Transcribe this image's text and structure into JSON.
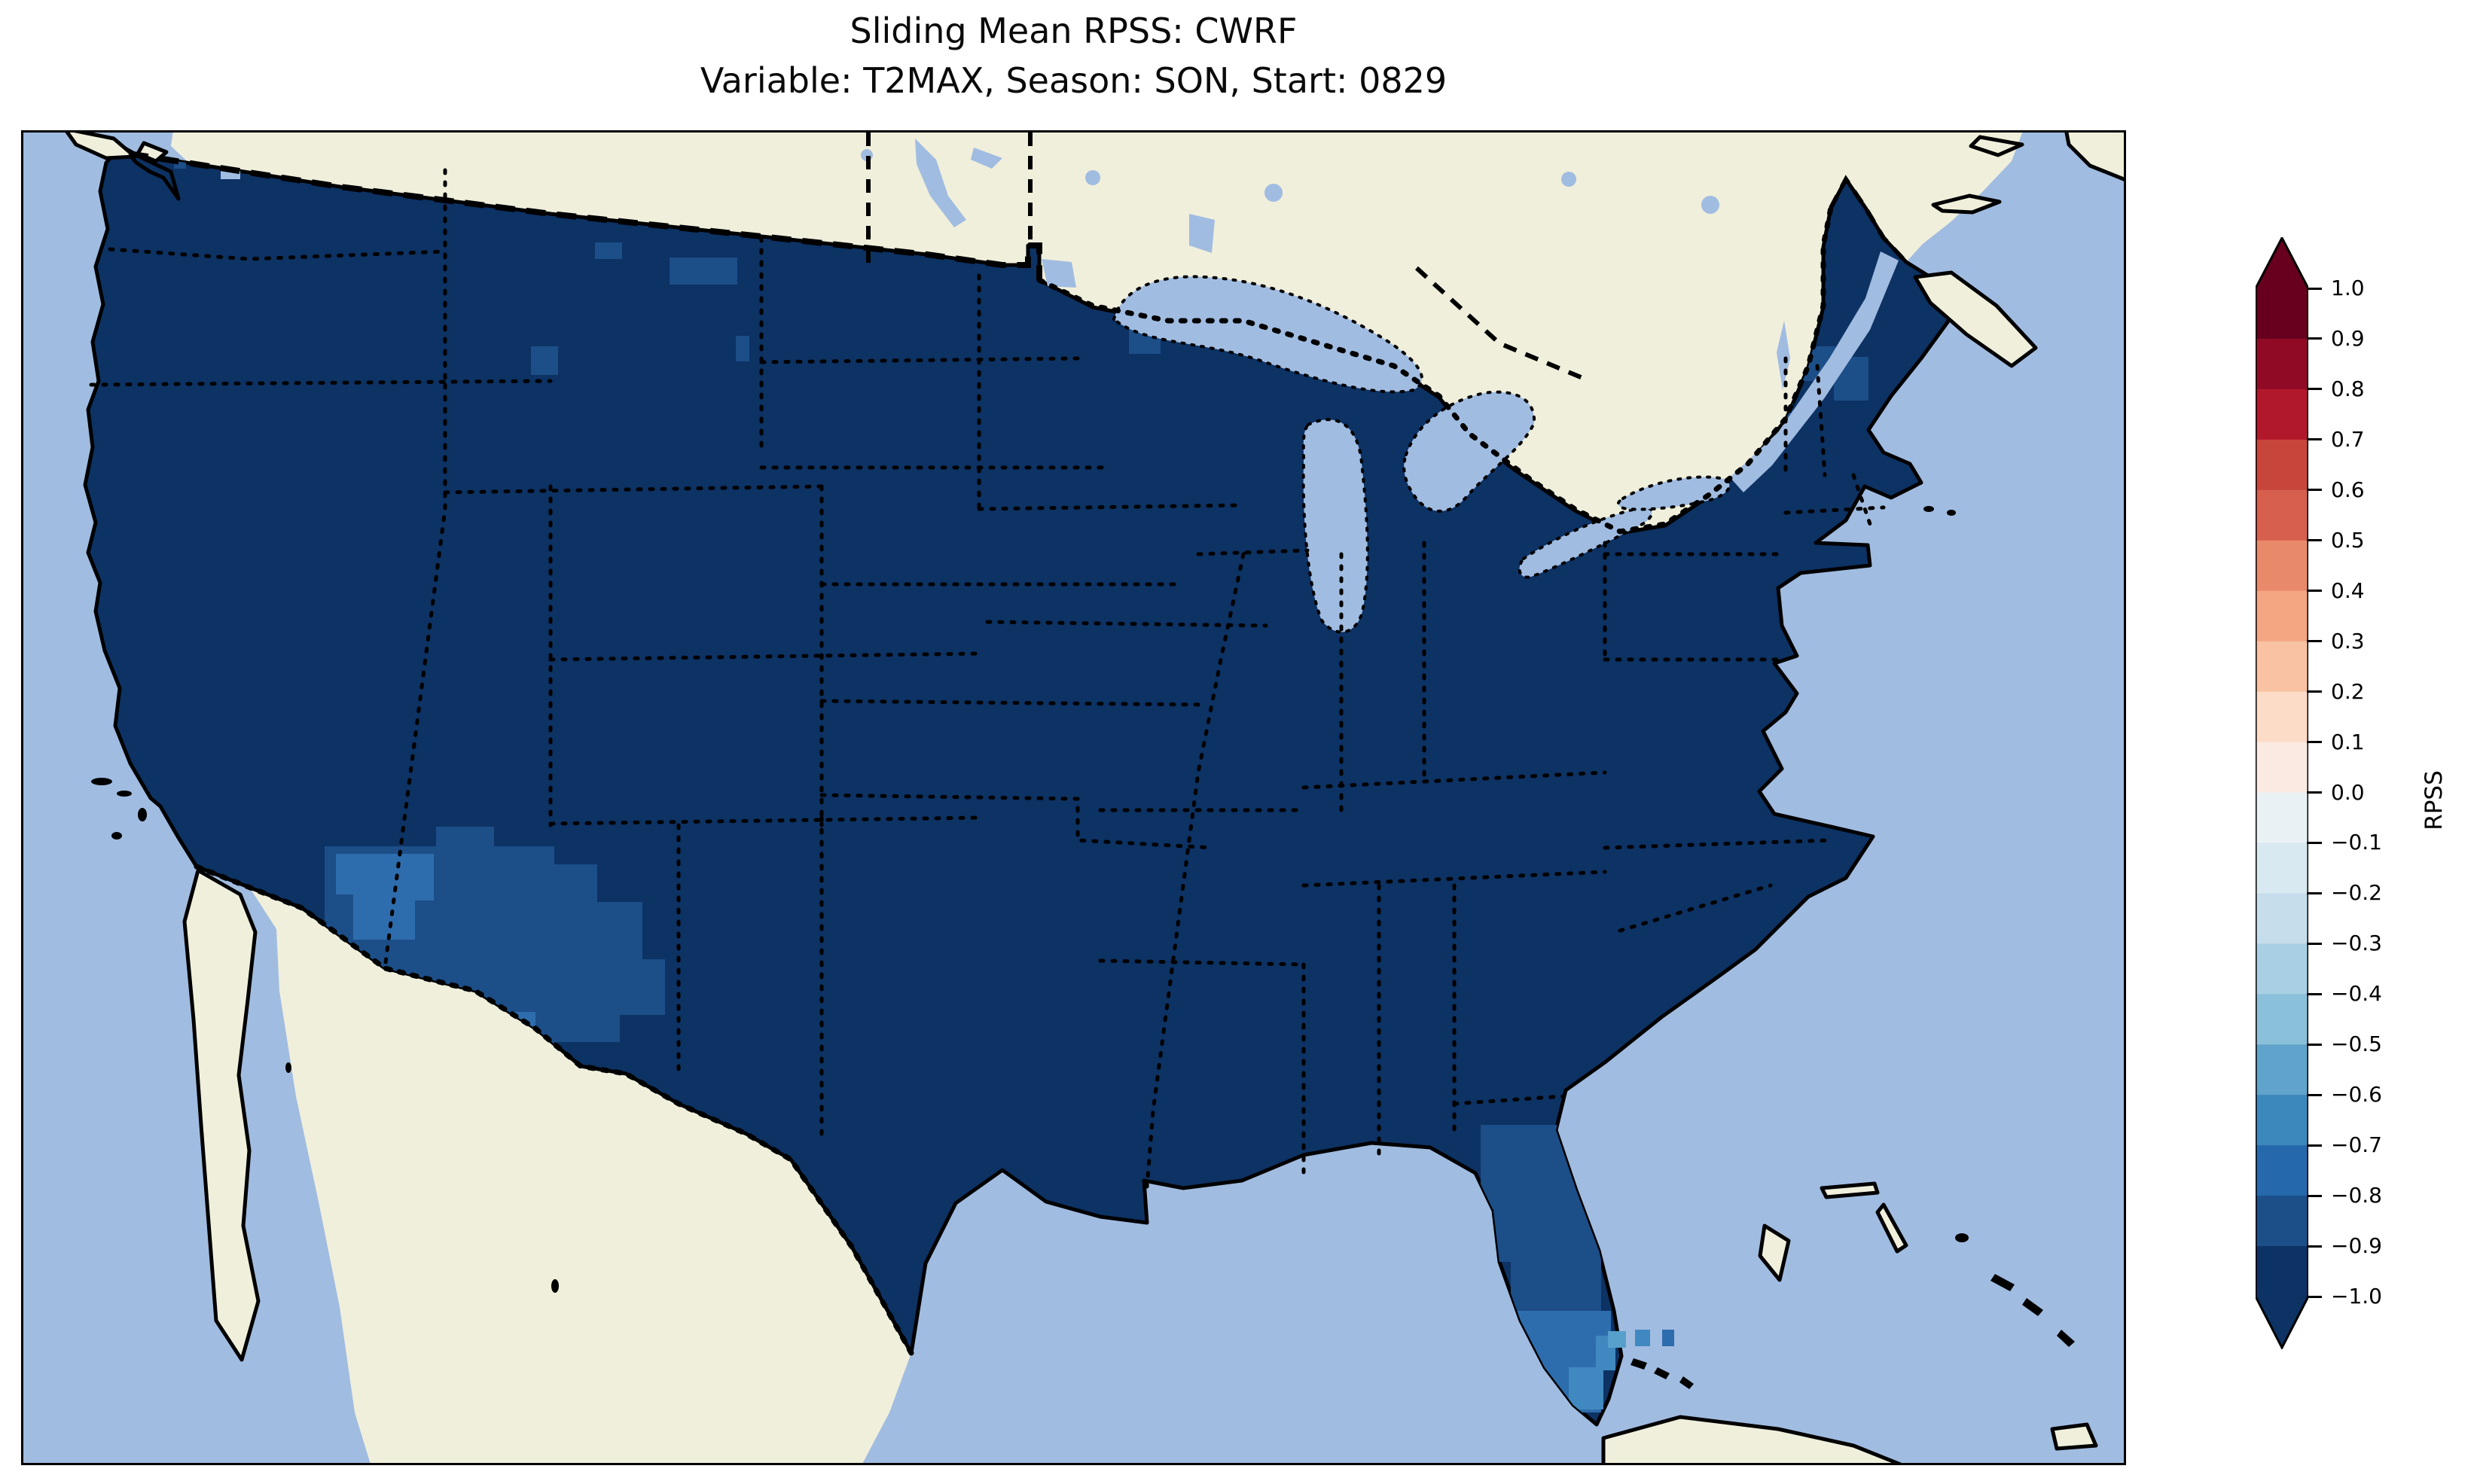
{
  "figure": {
    "title": "Sliding Mean RPSS: CWRF",
    "subtitle": "Variable: T2MAX, Season: SON, Start: 0829"
  },
  "colorbar": {
    "label": "RPSS",
    "ticks": [
      "1.0",
      "0.9",
      "0.8",
      "0.7",
      "0.6",
      "0.5",
      "0.4",
      "0.3",
      "0.2",
      "0.1",
      "0.0",
      "−0.1",
      "−0.2",
      "−0.3",
      "−0.4",
      "−0.5",
      "−0.6",
      "−0.7",
      "−0.8",
      "−0.9",
      "−1.0"
    ],
    "segments_top_to_bottom": [
      {
        "range": "0.9 to 1.0",
        "color": "#67001f"
      },
      {
        "range": "0.8 to 0.9",
        "color": "#900a26"
      },
      {
        "range": "0.7 to 0.8",
        "color": "#b2182b"
      },
      {
        "range": "0.6 to 0.7",
        "color": "#c8453c"
      },
      {
        "range": "0.5 to 0.6",
        "color": "#d6604d"
      },
      {
        "range": "0.4 to 0.5",
        "color": "#e88a6a"
      },
      {
        "range": "0.3 to 0.4",
        "color": "#f4a582"
      },
      {
        "range": "0.2 to 0.3",
        "color": "#f9c2a2"
      },
      {
        "range": "0.1 to 0.2",
        "color": "#fcdbc7"
      },
      {
        "range": "0.0 to 0.1",
        "color": "#faeae1"
      },
      {
        "range": "−0.1 to 0.0",
        "color": "#eaf1f5"
      },
      {
        "range": "−0.2 to −0.1",
        "color": "#d9e9f1"
      },
      {
        "range": "−0.3 to −0.2",
        "color": "#c6ddec"
      },
      {
        "range": "−0.4 to −0.3",
        "color": "#a9cfe4"
      },
      {
        "range": "−0.5 to −0.4",
        "color": "#8bc0da"
      },
      {
        "range": "−0.6 to −0.5",
        "color": "#60a3cb"
      },
      {
        "range": "−0.7 to −0.6",
        "color": "#3c87bb"
      },
      {
        "range": "−0.8 to −0.7",
        "color": "#2569ac"
      },
      {
        "range": "−0.9 to −0.8",
        "color": "#1c4e88"
      },
      {
        "range": "−1.0 to −0.9",
        "color": "#0d3264"
      }
    ],
    "extend_over_color": "#67001f",
    "extend_under_color": "#0d3264"
  },
  "map": {
    "colors": {
      "ocean": "#a1bce1",
      "land": "#f0efdb",
      "us": "#0d3264",
      "mid": "#1c4e88",
      "light": "#2e6dad",
      "lighter": "#4089c0",
      "lightest": "#57a0cc"
    }
  },
  "chart_data": {
    "type": "heatmap",
    "title": "Sliding Mean RPSS: CWRF",
    "subtitle": "Variable: T2MAX, Season: SON, Start: 0829",
    "colorbar_label": "RPSS",
    "colorbar_ticks": [
      1.0,
      0.9,
      0.8,
      0.7,
      0.6,
      0.5,
      0.4,
      0.3,
      0.2,
      0.1,
      0.0,
      -0.1,
      -0.2,
      -0.3,
      -0.4,
      -0.5,
      -0.6,
      -0.7,
      -0.8,
      -0.9,
      -1.0
    ],
    "colorbar_range": [
      -1.0,
      1.0
    ],
    "bin_width": 0.1,
    "extend": "both",
    "colormap": "RdBu diverging, 20 discrete bins (red = +1, dark navy = -1)",
    "legend_position": "right vertical colorbar",
    "regions": [
      {
        "area": "Most of contiguous United States",
        "rpss": "-1.0 to -0.9"
      },
      {
        "area": "Arizona / New Mexico / west Texas patch",
        "rpss": "-0.9 to -0.7"
      },
      {
        "area": "Scattered cells in Montana and Wyoming",
        "rpss": "-0.9 to -0.8"
      },
      {
        "area": "Vermont / New Hampshire / upstate New York cells",
        "rpss": "-0.9 to -0.8"
      },
      {
        "area": "Central Florida",
        "rpss": "-0.9 to -0.8"
      },
      {
        "area": "South Florida tip and Keys cells",
        "rpss": "-0.8 to -0.5"
      },
      {
        "area": "Canada, Mexico, Bahamas, Cuba",
        "rpss": "no data (land fill)"
      },
      {
        "area": "Oceans and Great Lakes",
        "rpss": "no data (water fill)"
      }
    ]
  }
}
